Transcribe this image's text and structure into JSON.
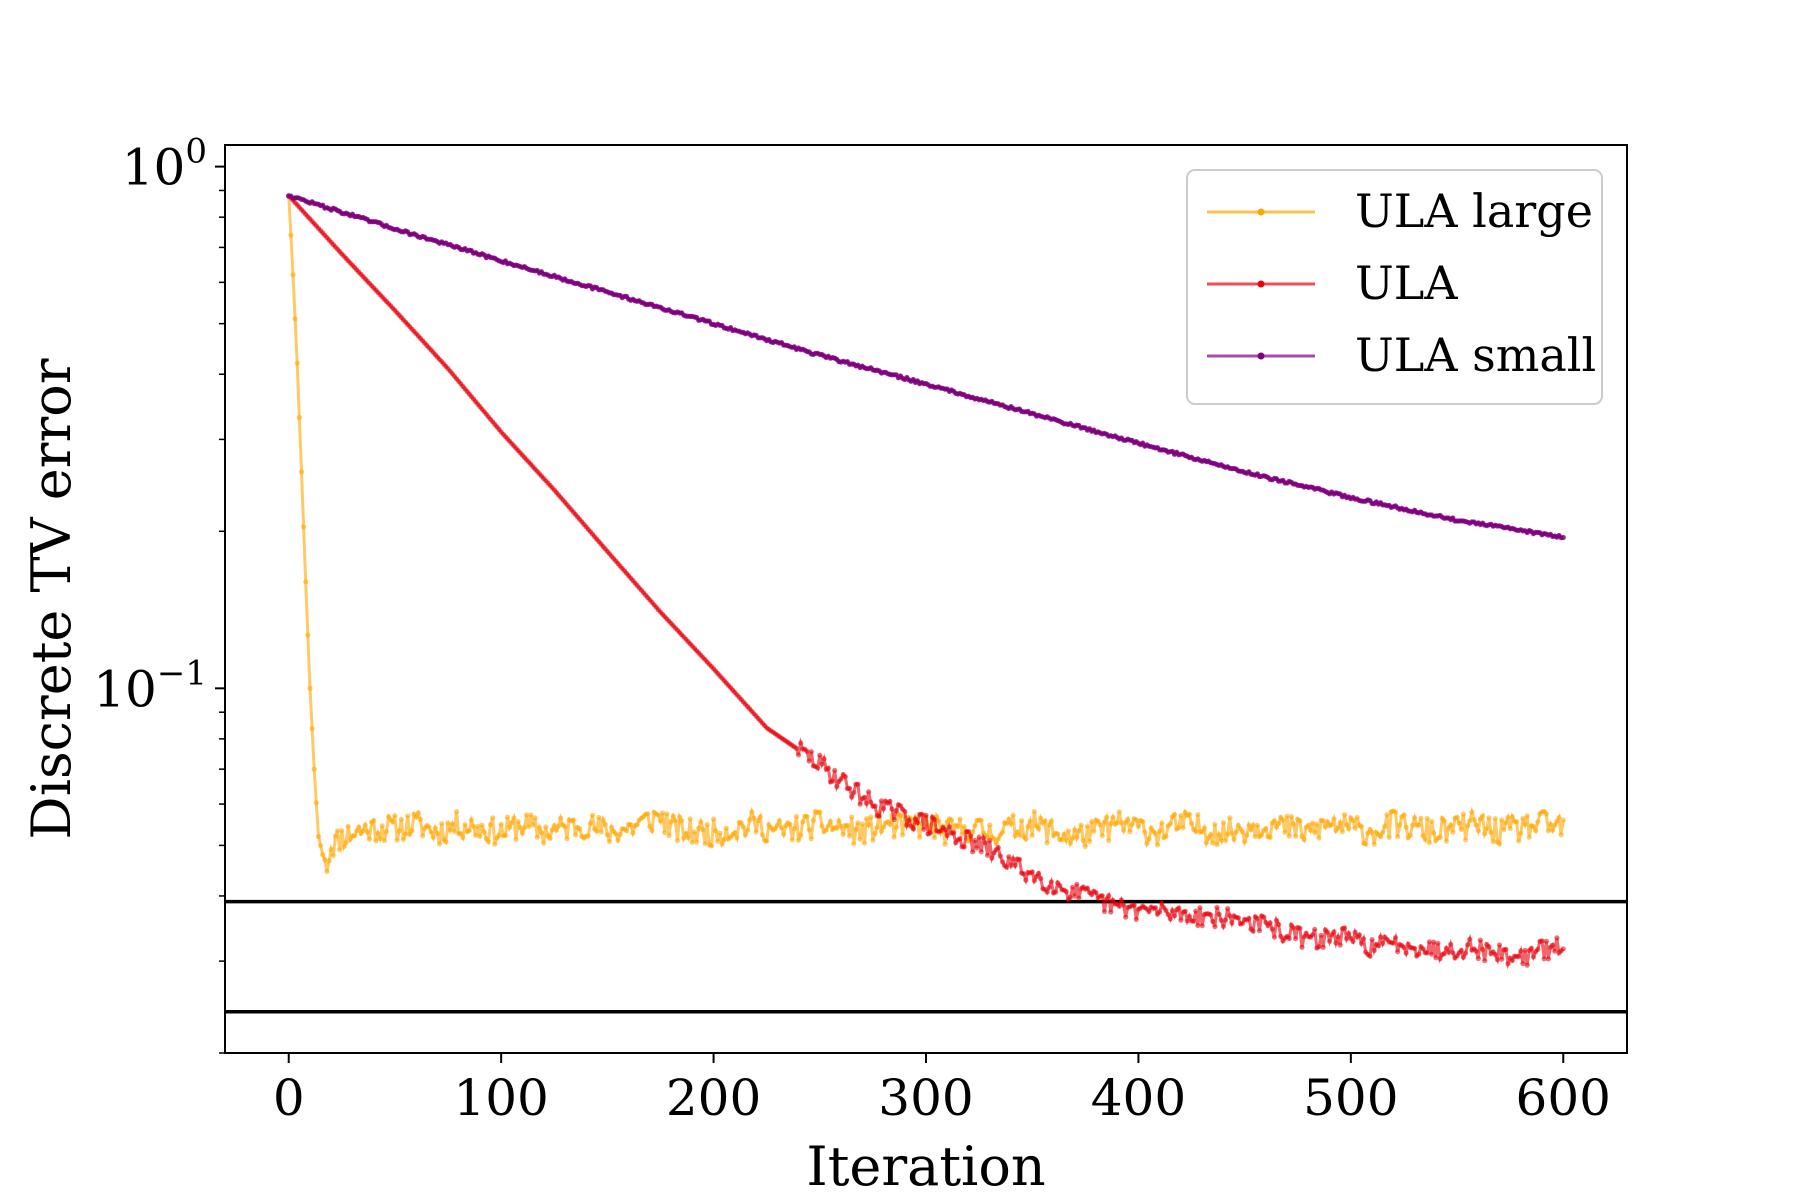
{
  "chart_data": {
    "type": "line",
    "title": "",
    "xlabel": "Iteration",
    "ylabel": "Discrete TV error",
    "xlim": [
      -30,
      630
    ],
    "ylim": [
      0.02,
      1.1
    ],
    "yscale": "log",
    "xticks": [
      0,
      100,
      200,
      300,
      400,
      500,
      600
    ],
    "yticks": [
      {
        "value": 1.0,
        "base": "10",
        "exp": "0"
      },
      {
        "value": 0.1,
        "base": "10",
        "exp": "−1"
      }
    ],
    "grid": false,
    "legend_position": "upper right",
    "series": [
      {
        "name": "ULA large",
        "color": "#FFA500",
        "marker": "dot",
        "x": [
          0,
          2,
          4,
          6,
          8,
          10,
          12,
          14,
          16,
          18,
          20,
          25,
          30,
          40,
          50,
          60,
          70,
          80,
          90,
          100,
          110,
          120,
          130,
          140,
          150,
          160,
          170,
          175,
          180,
          190,
          200,
          210,
          220,
          230,
          240,
          250,
          260,
          270,
          280,
          290,
          300,
          310,
          320,
          330,
          340,
          350,
          360,
          370,
          380,
          390,
          400,
          410,
          420,
          430,
          440,
          450,
          460,
          470,
          480,
          490,
          500,
          510,
          520,
          530,
          540,
          550,
          560,
          570,
          580,
          590,
          600
        ],
        "y": [
          0.88,
          0.62,
          0.42,
          0.26,
          0.16,
          0.1,
          0.07,
          0.052,
          0.048,
          0.046,
          0.05,
          0.052,
          0.053,
          0.054,
          0.054,
          0.055,
          0.053,
          0.055,
          0.054,
          0.053,
          0.055,
          0.053,
          0.054,
          0.055,
          0.053,
          0.054,
          0.056,
          0.057,
          0.054,
          0.053,
          0.053,
          0.054,
          0.055,
          0.053,
          0.054,
          0.055,
          0.054,
          0.053,
          0.055,
          0.054,
          0.055,
          0.053,
          0.054,
          0.053,
          0.054,
          0.055,
          0.053,
          0.052,
          0.053,
          0.055,
          0.054,
          0.053,
          0.055,
          0.054,
          0.053,
          0.054,
          0.055,
          0.054,
          0.053,
          0.055,
          0.054,
          0.053,
          0.055,
          0.054,
          0.053,
          0.054,
          0.055,
          0.053,
          0.054,
          0.055,
          0.054
        ]
      },
      {
        "name": "ULA",
        "color": "#E8000B",
        "marker": "dot",
        "x": [
          0,
          25,
          50,
          75,
          100,
          125,
          150,
          175,
          200,
          225,
          250,
          275,
          300,
          315,
          330,
          345,
          360,
          375,
          390,
          405,
          420,
          435,
          450,
          465,
          480,
          495,
          510,
          525,
          540,
          555,
          570,
          580,
          590,
          600
        ],
        "y": [
          0.88,
          0.68,
          0.53,
          0.41,
          0.31,
          0.24,
          0.183,
          0.14,
          0.109,
          0.084,
          0.0715,
          0.06,
          0.055,
          0.052,
          0.049,
          0.045,
          0.042,
          0.04,
          0.038,
          0.0375,
          0.037,
          0.0365,
          0.036,
          0.0345,
          0.033,
          0.0335,
          0.032,
          0.0325,
          0.0315,
          0.032,
          0.031,
          0.0305,
          0.0315,
          0.032
        ]
      },
      {
        "name": "ULA small",
        "color": "#800080",
        "marker": "dot",
        "x": [
          0,
          50,
          100,
          150,
          200,
          250,
          300,
          350,
          400,
          450,
          500,
          550,
          600
        ],
        "y": [
          0.88,
          0.76,
          0.66,
          0.575,
          0.5,
          0.435,
          0.383,
          0.336,
          0.295,
          0.26,
          0.232,
          0.21,
          0.195
        ]
      }
    ],
    "hlines": [
      0.039,
      0.024
    ]
  }
}
